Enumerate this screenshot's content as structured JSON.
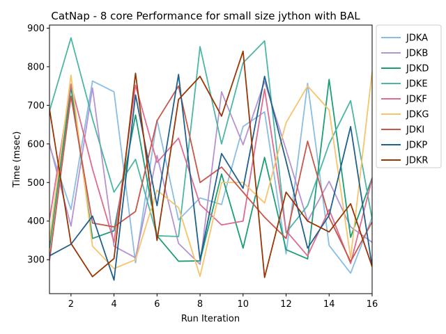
{
  "chart_data": {
    "type": "line",
    "title": "CatNap - 8 core Performance for small size jython with BAL",
    "xlabel": "Run Iteration",
    "ylabel": "Time (msec)",
    "xlim": [
      1,
      16
    ],
    "ylim": [
      212,
      908
    ],
    "xticks": [
      2,
      4,
      6,
      8,
      10,
      12,
      14,
      16
    ],
    "yticks": [
      300,
      400,
      500,
      600,
      700,
      800,
      900
    ],
    "grid": false,
    "legend_position": "outside-right",
    "x": [
      1,
      2,
      3,
      4,
      5,
      6,
      7,
      8,
      9,
      10,
      11,
      12,
      13,
      14,
      15,
      16
    ],
    "series": [
      {
        "name": "JDKA",
        "color": "#88bde6",
        "values": [
          595,
          430,
          763,
          735,
          292,
          662,
          403,
          460,
          443,
          645,
          683,
          315,
          757,
          337,
          265,
          410
        ]
      },
      {
        "name": "JDKB",
        "color": "#b592d1",
        "values": [
          600,
          387,
          745,
          335,
          305,
          570,
          342,
          288,
          735,
          598,
          762,
          585,
          400,
          503,
          385,
          345
        ]
      },
      {
        "name": "JDKD",
        "color": "#1b9e77",
        "values": [
          330,
          748,
          355,
          375,
          675,
          362,
          296,
          297,
          522,
          330,
          565,
          326,
          302,
          767,
          358,
          512
        ]
      },
      {
        "name": "JDKE",
        "color": "#4bb6a3",
        "values": [
          685,
          875,
          665,
          475,
          560,
          362,
          360,
          852,
          600,
          810,
          867,
          370,
          440,
          600,
          712,
          405
        ]
      },
      {
        "name": "JDKF",
        "color": "#e06a8e",
        "values": [
          403,
          755,
          535,
          345,
          752,
          552,
          615,
          443,
          390,
          400,
          742,
          375,
          310,
          430,
          290,
          510
        ]
      },
      {
        "name": "JDKG",
        "color": "#f7c36b",
        "values": [
          350,
          778,
          335,
          277,
          300,
          480,
          435,
          257,
          500,
          500,
          447,
          655,
          750,
          688,
          305,
          787
        ]
      },
      {
        "name": "JDKI",
        "color": "#c8554a",
        "values": [
          298,
          724,
          395,
          385,
          425,
          660,
          750,
          500,
          540,
          475,
          410,
          355,
          607,
          410,
          295,
          398
        ]
      },
      {
        "name": "JDKP",
        "color": "#1f5f8b",
        "values": [
          310,
          340,
          413,
          247,
          727,
          440,
          780,
          300,
          575,
          485,
          775,
          555,
          330,
          415,
          645,
          282
        ]
      },
      {
        "name": "JDKR",
        "color": "#993404",
        "values": [
          690,
          342,
          256,
          303,
          783,
          350,
          715,
          775,
          672,
          840,
          254,
          475,
          400,
          372,
          445,
          282
        ]
      }
    ]
  }
}
